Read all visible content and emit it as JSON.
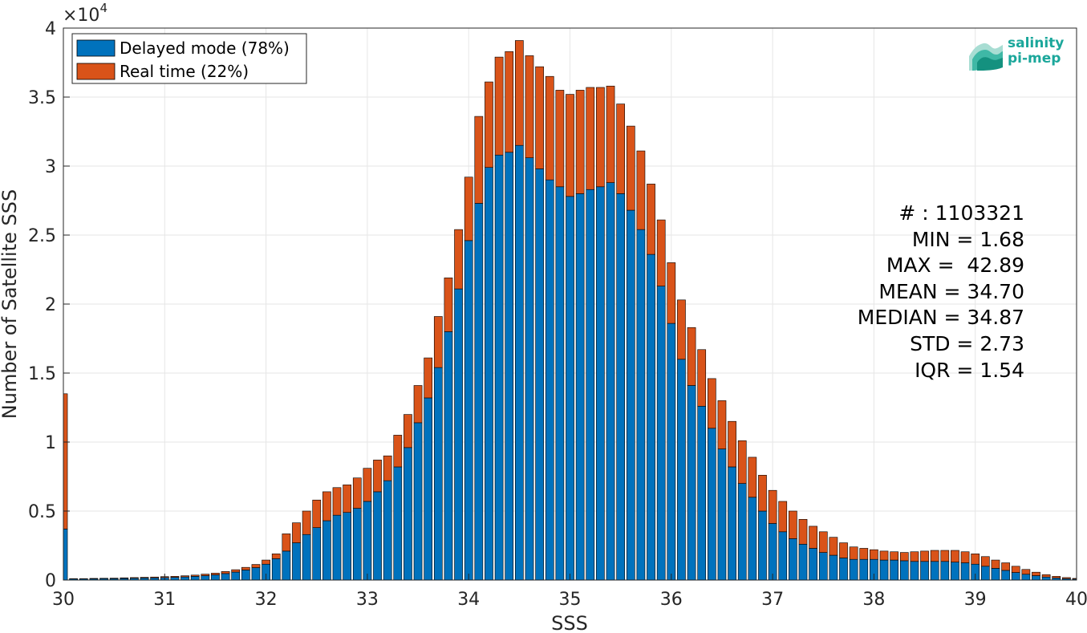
{
  "chart_data": {
    "type": "bar",
    "stacked": true,
    "xlabel": "SSS",
    "ylabel": "Number of Satellite SSS",
    "y_exponent_label": "×10",
    "y_exponent_power": "4",
    "xlim": [
      30,
      40
    ],
    "ylim": [
      0,
      40000
    ],
    "grid": true,
    "legend_position": "top-left",
    "xticks": [
      "30",
      "31",
      "32",
      "33",
      "34",
      "35",
      "36",
      "37",
      "38",
      "39",
      "40"
    ],
    "yticks": [
      "0",
      "0.5",
      "1",
      "1.5",
      "2",
      "2.5",
      "3",
      "3.5",
      "4"
    ],
    "bin_start": 30,
    "bin_width": 0.1,
    "series": [
      {
        "name": "Delayed mode (78%)",
        "color": "#0072bd",
        "values": [
          3700,
          80,
          80,
          90,
          100,
          100,
          120,
          130,
          150,
          160,
          180,
          200,
          230,
          270,
          320,
          380,
          470,
          580,
          730,
          900,
          1150,
          1550,
          2100,
          2700,
          3300,
          3800,
          4300,
          4700,
          4900,
          5200,
          5700,
          6400,
          7200,
          8200,
          9600,
          11400,
          13200,
          15400,
          18000,
          21100,
          24600,
          27300,
          29900,
          30800,
          31000,
          31500,
          30600,
          29800,
          29000,
          28500,
          27800,
          28000,
          28300,
          28500,
          28800,
          28000,
          26800,
          25400,
          23600,
          21300,
          18600,
          16000,
          14100,
          12600,
          11000,
          9500,
          8200,
          7000,
          6000,
          5000,
          4100,
          3500,
          3000,
          2600,
          2300,
          2000,
          1800,
          1600,
          1500,
          1500,
          1500,
          1450,
          1450,
          1400,
          1350,
          1350,
          1350,
          1350,
          1300,
          1250,
          1150,
          1000,
          850,
          700,
          550,
          420,
          320,
          220,
          150,
          100,
          70
        ]
      },
      {
        "name": "Real time (22%)",
        "color": "#d95319",
        "values": [
          9800,
          20,
          20,
          30,
          30,
          40,
          40,
          50,
          50,
          60,
          70,
          70,
          80,
          90,
          110,
          120,
          150,
          170,
          190,
          230,
          300,
          350,
          1250,
          1450,
          1700,
          2000,
          2100,
          2000,
          2000,
          2200,
          2400,
          2300,
          1800,
          2300,
          2400,
          2700,
          2900,
          3700,
          3900,
          4300,
          4600,
          6300,
          6200,
          7100,
          7300,
          7600,
          7400,
          7400,
          7500,
          7000,
          7400,
          7500,
          7400,
          7200,
          7000,
          6500,
          6100,
          5700,
          5100,
          4800,
          4400,
          4300,
          4200,
          4100,
          3600,
          3500,
          3300,
          3100,
          2900,
          2600,
          2400,
          2200,
          2000,
          1800,
          1600,
          1500,
          1300,
          1100,
          900,
          800,
          700,
          650,
          600,
          600,
          700,
          750,
          800,
          800,
          850,
          800,
          750,
          700,
          600,
          550,
          450,
          350,
          250,
          170,
          120,
          80,
          50
        ]
      }
    ]
  },
  "stats": {
    "count": "# : 1103321",
    "min": "MIN = 1.68",
    "max": "MAX =  42.89",
    "mean": "MEAN = 34.70",
    "median": "MEDIAN = 34.87",
    "std": "STD = 2.73",
    "iqr": "IQR = 1.54"
  },
  "logo": {
    "line1": "salinity",
    "line2": "pi-mep",
    "color": "#1ba79b"
  }
}
